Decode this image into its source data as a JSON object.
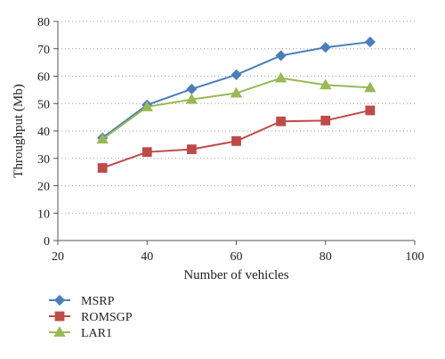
{
  "chart_data": {
    "type": "line",
    "title": "",
    "xlabel": "Number of vehicles",
    "ylabel": "Throughput (Mb)",
    "xlim": [
      20,
      100
    ],
    "ylim": [
      0,
      80
    ],
    "xticks": [
      20,
      40,
      60,
      80,
      100
    ],
    "yticks": [
      0,
      10,
      20,
      30,
      40,
      50,
      60,
      70,
      80
    ],
    "grid": "horizontal-dotted",
    "legend_position": "bottom-left",
    "x": [
      30,
      40,
      50,
      60,
      70,
      80,
      90
    ],
    "series": [
      {
        "name": "MSRP",
        "color": "#4a7ebb",
        "marker": "diamond",
        "values": [
          37.5,
          49.5,
          55.3,
          60.5,
          67.5,
          70.5,
          72.5
        ]
      },
      {
        "name": "ROMSGP",
        "color": "#be4b48",
        "marker": "square",
        "values": [
          26.5,
          32.3,
          33.3,
          36.3,
          43.5,
          43.8,
          47.5
        ]
      },
      {
        "name": "LAR1",
        "color": "#98b954",
        "marker": "triangle",
        "values": [
          37.0,
          48.8,
          51.5,
          53.8,
          59.3,
          56.8,
          55.8
        ]
      }
    ]
  }
}
